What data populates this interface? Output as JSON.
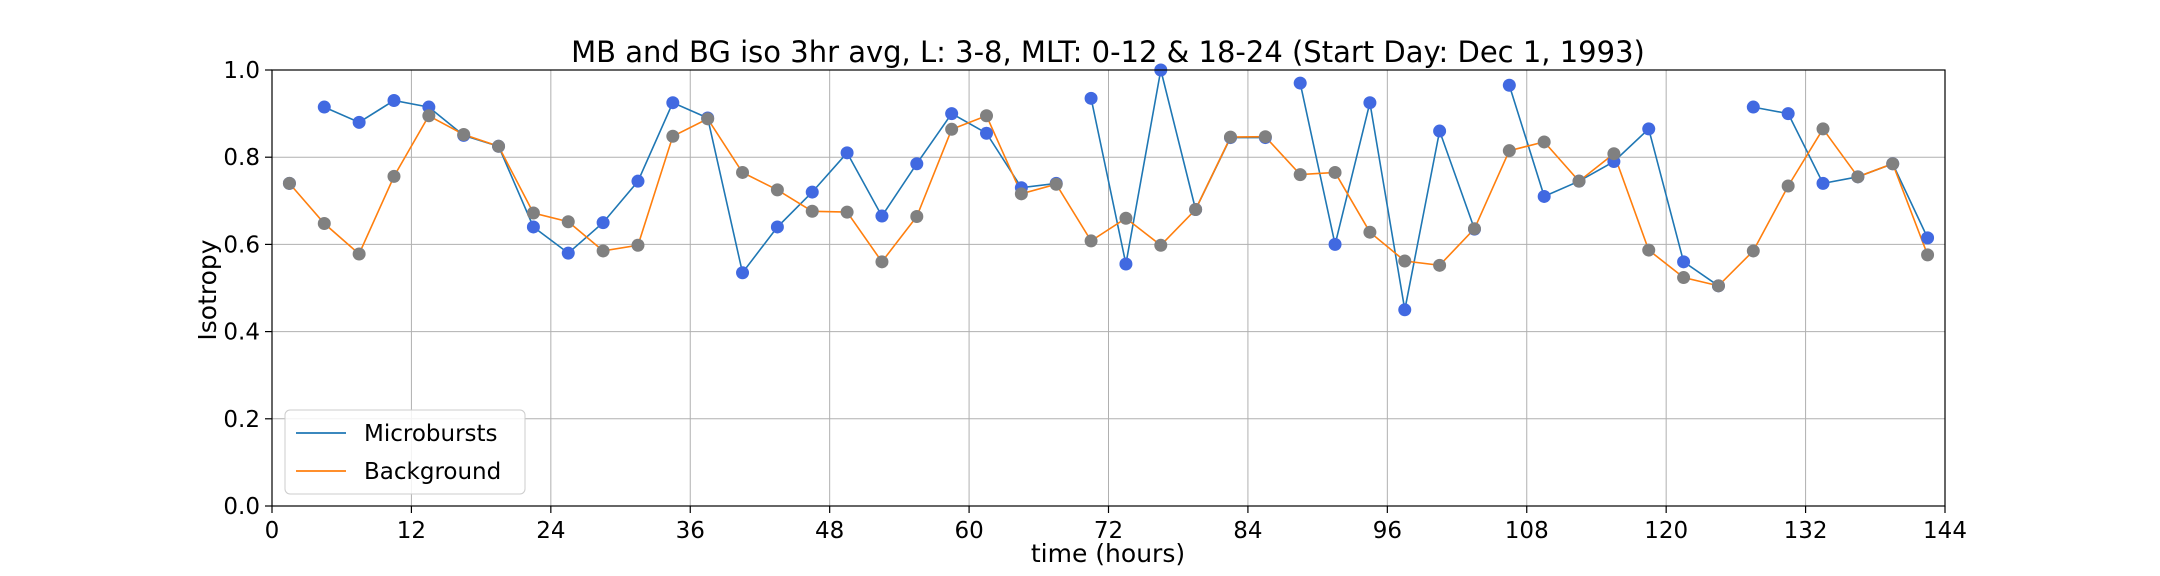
{
  "chart_data": {
    "type": "line",
    "title": "MB and BG iso 3hr avg, L: 3-8, MLT: 0-12 & 18-24 (Start Day: Dec 1, 1993)",
    "xlabel": "time (hours)",
    "ylabel": "Isotropy",
    "xlim": [
      0,
      144
    ],
    "ylim": [
      0.0,
      1.0
    ],
    "xticks": [
      0,
      12,
      24,
      36,
      48,
      60,
      72,
      84,
      96,
      108,
      120,
      132,
      144
    ],
    "xtick_labels": [
      "0",
      "12",
      "24",
      "36",
      "48",
      "60",
      "72",
      "84",
      "96",
      "108",
      "120",
      "132",
      "144"
    ],
    "yticks": [
      0.0,
      0.2,
      0.4,
      0.6,
      0.8,
      1.0
    ],
    "ytick_labels": [
      "0.0",
      "0.2",
      "0.4",
      "0.6",
      "0.8",
      "1.0"
    ],
    "grid": true,
    "legend_position": "lower-left",
    "series": [
      {
        "name": "Microbursts",
        "color": "#1f77b4",
        "marker_color": "#4169e1",
        "x": [
          1.5,
          4.5,
          7.5,
          10.5,
          13.5,
          16.5,
          19.5,
          22.5,
          25.5,
          28.5,
          31.5,
          34.5,
          37.5,
          40.5,
          43.5,
          46.5,
          49.5,
          52.5,
          55.5,
          58.5,
          61.5,
          64.5,
          67.5,
          70.5,
          73.5,
          76.5,
          79.5,
          82.5,
          85.5,
          88.5,
          91.5,
          94.5,
          97.5,
          100.5,
          103.5,
          106.5,
          109.5,
          112.5,
          115.5,
          118.5,
          121.5,
          124.5,
          127.5,
          130.5,
          133.5,
          136.5,
          139.5,
          142.5
        ],
        "y": [
          0.74,
          0.915,
          0.88,
          0.93,
          0.915,
          0.85,
          0.825,
          0.64,
          0.58,
          0.65,
          0.745,
          0.925,
          0.89,
          0.535,
          0.64,
          0.72,
          0.81,
          0.665,
          0.785,
          0.9,
          0.855,
          0.73,
          0.74,
          0.935,
          0.555,
          1.0,
          0.68,
          0.845,
          0.845,
          0.97,
          0.6,
          0.925,
          0.45,
          0.86,
          0.635,
          0.965,
          0.71,
          0.745,
          0.79,
          0.865,
          0.56,
          0.505,
          0.915,
          0.9,
          0.74,
          0.755,
          0.785,
          0.615
        ],
        "gaps_before_index": [
          1,
          23,
          29,
          35,
          42
        ]
      },
      {
        "name": "Background",
        "color": "#ff7f0e",
        "marker_color": "#808080",
        "x": [
          1.5,
          4.5,
          7.5,
          10.5,
          13.5,
          16.5,
          19.5,
          22.5,
          25.5,
          28.5,
          31.5,
          34.5,
          37.5,
          40.5,
          43.5,
          46.5,
          49.5,
          52.5,
          55.5,
          58.5,
          61.5,
          64.5,
          67.5,
          70.5,
          73.5,
          76.5,
          79.5,
          82.5,
          85.5,
          88.5,
          91.5,
          94.5,
          97.5,
          100.5,
          103.5,
          106.5,
          109.5,
          112.5,
          115.5,
          118.5,
          121.5,
          124.5,
          127.5,
          130.5,
          133.5,
          136.5,
          139.5,
          142.5
        ],
        "y": [
          0.74,
          0.648,
          0.578,
          0.756,
          0.895,
          0.852,
          0.825,
          0.672,
          0.652,
          0.585,
          0.598,
          0.848,
          0.888,
          0.765,
          0.725,
          0.676,
          0.674,
          0.56,
          0.664,
          0.864,
          0.895,
          0.716,
          0.738,
          0.608,
          0.66,
          0.598,
          0.68,
          0.846,
          0.847,
          0.76,
          0.765,
          0.628,
          0.562,
          0.552,
          0.636,
          0.815,
          0.835,
          0.745,
          0.808,
          0.587,
          0.524,
          0.505,
          0.585,
          0.734,
          0.865,
          0.755,
          0.785,
          0.576
        ]
      }
    ]
  }
}
